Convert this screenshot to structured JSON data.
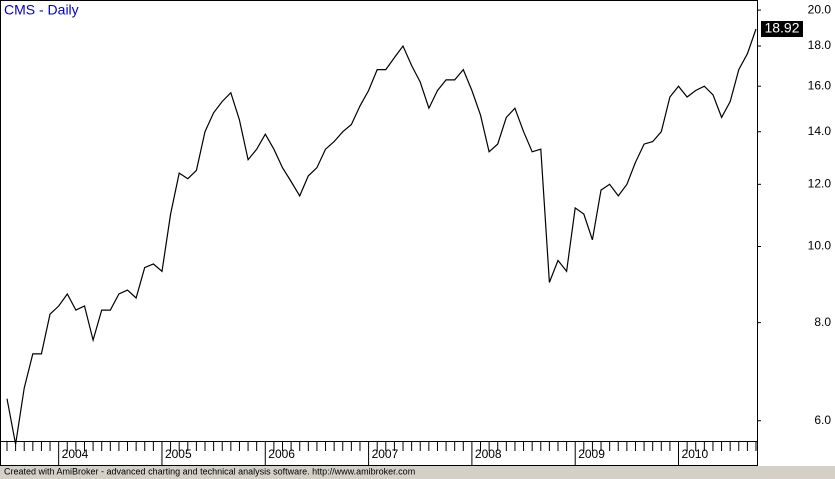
{
  "chart_data": {
    "type": "line",
    "title": "CMS - Daily",
    "footer": "Created with AmiBroker - advanced charting and technical analysis software. http://www.amibroker.com",
    "log_scale": true,
    "grid": false,
    "color": "#000000",
    "ylim": [
      5.27,
      20.6
    ],
    "yticks": [
      {
        "value": 6,
        "label": "6.0"
      },
      {
        "value": 8,
        "label": "8.0"
      },
      {
        "value": 10,
        "label": "10.0"
      },
      {
        "value": 12,
        "label": "12.0"
      },
      {
        "value": 14,
        "label": "14.0"
      },
      {
        "value": 16,
        "label": "16.0"
      },
      {
        "value": 18,
        "label": "18.0"
      },
      {
        "value": 20,
        "label": "20.0"
      }
    ],
    "categories": [
      null,
      null,
      null,
      null,
      null,
      null,
      "2004",
      null,
      null,
      null,
      null,
      null,
      null,
      null,
      null,
      null,
      null,
      null,
      "2005",
      null,
      null,
      null,
      null,
      null,
      null,
      null,
      null,
      null,
      null,
      null,
      "2006",
      null,
      null,
      null,
      null,
      null,
      null,
      null,
      null,
      null,
      null,
      null,
      "2007",
      null,
      null,
      null,
      null,
      null,
      null,
      null,
      null,
      null,
      null,
      null,
      "2008",
      null,
      null,
      null,
      null,
      null,
      null,
      null,
      null,
      null,
      null,
      null,
      "2009",
      null,
      null,
      null,
      null,
      null,
      null,
      null,
      null,
      null,
      null,
      null,
      "2010",
      null,
      null,
      null,
      null,
      null,
      null,
      null,
      null,
      null
    ],
    "values": [
      6.4,
      5.6,
      6.6,
      7.3,
      7.3,
      8.2,
      8.4,
      8.7,
      8.3,
      8.4,
      7.6,
      8.3,
      8.3,
      8.7,
      8.8,
      8.6,
      9.4,
      9.5,
      9.3,
      11.0,
      12.4,
      12.2,
      12.5,
      14.0,
      14.8,
      15.3,
      15.7,
      14.5,
      12.9,
      13.3,
      13.9,
      13.3,
      12.6,
      12.1,
      11.6,
      12.3,
      12.6,
      13.3,
      13.6,
      14.0,
      14.3,
      15.1,
      15.8,
      16.8,
      16.8,
      17.4,
      18.0,
      17.0,
      16.2,
      15.0,
      15.8,
      16.3,
      16.3,
      16.8,
      15.8,
      14.7,
      13.2,
      13.5,
      14.6,
      15.0,
      14.0,
      13.2,
      13.3,
      9.0,
      9.6,
      9.3,
      11.2,
      11.0,
      10.2,
      11.8,
      12.0,
      11.6,
      12.0,
      12.8,
      13.5,
      13.6,
      14.0,
      15.5,
      16.0,
      15.5,
      15.8,
      16.0,
      15.6,
      14.6,
      15.3,
      16.8,
      17.6,
      18.92
    ]
  }
}
